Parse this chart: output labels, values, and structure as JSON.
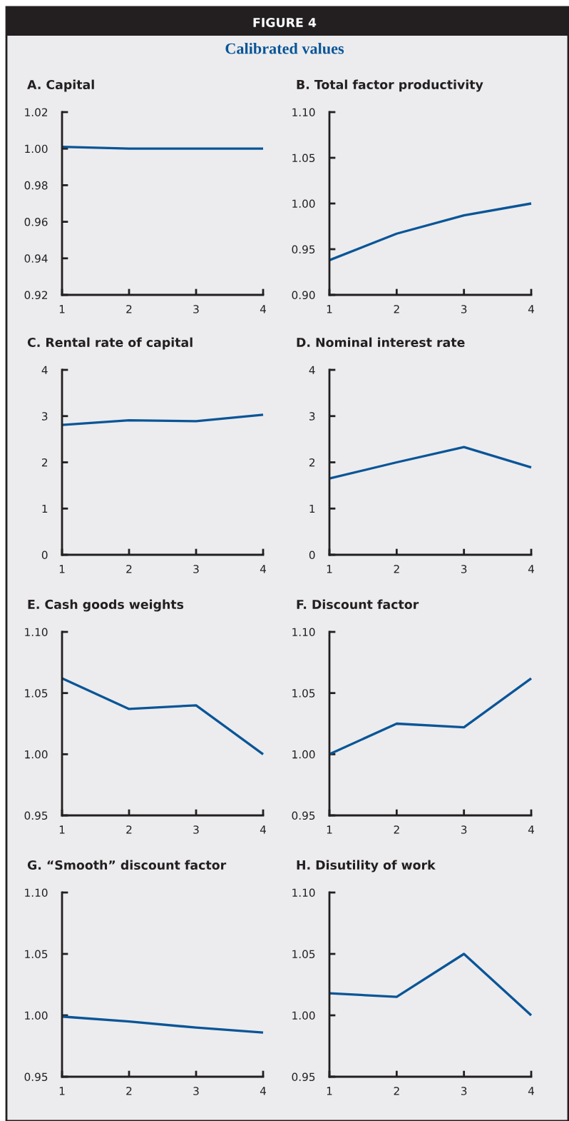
{
  "chart_data": [
    {
      "type": "other",
      "title": "FIGURE 4",
      "subtitle": "Calibrated values"
    },
    {
      "type": "line",
      "title": "A. Capital",
      "x": [
        1,
        2,
        3,
        4
      ],
      "xlim": [
        1,
        4
      ],
      "xticks": [
        1,
        2,
        3,
        4
      ],
      "ylim": [
        0.92,
        1.02
      ],
      "yticks": [
        {
          "value": 0.92,
          "label": "0.92"
        },
        {
          "value": 0.94,
          "label": "0.94"
        },
        {
          "value": 0.96,
          "label": "0.96"
        },
        {
          "value": 0.98,
          "label": "0.98"
        },
        {
          "value": 1.0,
          "label": "1.00"
        },
        {
          "value": 1.02,
          "label": "1.02"
        }
      ],
      "grid": false,
      "marker": "none",
      "line_style": "solid",
      "series": [
        {
          "color": "#0a5597",
          "values": [
            1.001,
            1.0,
            1.0,
            1.0
          ]
        }
      ]
    },
    {
      "type": "line",
      "title": "B. Total factor productivity",
      "x": [
        1,
        2,
        3,
        4
      ],
      "xlim": [
        1,
        4
      ],
      "xticks": [
        1,
        2,
        3,
        4
      ],
      "ylim": [
        0.9,
        1.1
      ],
      "yticks": [
        {
          "value": 0.9,
          "label": "0.90"
        },
        {
          "value": 0.95,
          "label": "0.95"
        },
        {
          "value": 1.0,
          "label": "1.00"
        },
        {
          "value": 1.05,
          "label": "1.05"
        },
        {
          "value": 1.1,
          "label": "1.10"
        }
      ],
      "grid": false,
      "marker": "none",
      "line_style": "solid",
      "series": [
        {
          "color": "#0a5597",
          "values": [
            0.938,
            0.967,
            0.987,
            1.0
          ]
        }
      ]
    },
    {
      "type": "line",
      "title": "C. Rental rate of capital",
      "x": [
        1,
        2,
        3,
        4
      ],
      "xlim": [
        1,
        4
      ],
      "xticks": [
        1,
        2,
        3,
        4
      ],
      "ylim": [
        0,
        4
      ],
      "yticks": [
        0,
        1,
        2,
        3,
        4
      ],
      "grid": false,
      "marker": "none",
      "line_style": "solid",
      "series": [
        {
          "color": "#0a5597",
          "values": [
            2.81,
            2.91,
            2.89,
            3.03
          ]
        }
      ]
    },
    {
      "type": "line",
      "title": "D. Nominal interest rate",
      "x": [
        1,
        2,
        3,
        4
      ],
      "xlim": [
        1,
        4
      ],
      "xticks": [
        1,
        2,
        3,
        4
      ],
      "ylim": [
        0,
        4
      ],
      "yticks": [
        0,
        1,
        2,
        3,
        4
      ],
      "grid": false,
      "marker": "none",
      "line_style": "solid",
      "series": [
        {
          "color": "#0a5597",
          "values": [
            1.65,
            2.0,
            2.33,
            1.89
          ]
        }
      ]
    },
    {
      "type": "line",
      "title": "E. Cash goods weights",
      "x": [
        1,
        2,
        3,
        4
      ],
      "xlim": [
        1,
        4
      ],
      "xticks": [
        1,
        2,
        3,
        4
      ],
      "ylim": [
        0.95,
        1.1
      ],
      "yticks": [
        {
          "value": 0.95,
          "label": "0.95"
        },
        {
          "value": 1.0,
          "label": "1.00"
        },
        {
          "value": 1.05,
          "label": "1.05"
        },
        {
          "value": 1.1,
          "label": "1.10"
        }
      ],
      "grid": false,
      "marker": "none",
      "line_style": "solid",
      "series": [
        {
          "color": "#0a5597",
          "values": [
            1.062,
            1.037,
            1.04,
            1.0
          ]
        }
      ]
    },
    {
      "type": "line",
      "title": "F. Discount factor",
      "x": [
        1,
        2,
        3,
        4
      ],
      "xlim": [
        1,
        4
      ],
      "xticks": [
        1,
        2,
        3,
        4
      ],
      "ylim": [
        0.95,
        1.1
      ],
      "yticks": [
        {
          "value": 0.95,
          "label": "0.95"
        },
        {
          "value": 1.0,
          "label": "1.00"
        },
        {
          "value": 1.05,
          "label": "1.05"
        },
        {
          "value": 1.1,
          "label": "1.10"
        }
      ],
      "grid": false,
      "marker": "none",
      "line_style": "solid",
      "series": [
        {
          "color": "#0a5597",
          "values": [
            1.0,
            1.025,
            1.022,
            1.062
          ]
        }
      ]
    },
    {
      "type": "line",
      "title": "G. “Smooth” discount factor",
      "x": [
        1,
        2,
        3,
        4
      ],
      "xlim": [
        1,
        4
      ],
      "xticks": [
        1,
        2,
        3,
        4
      ],
      "ylim": [
        0.95,
        1.1
      ],
      "yticks": [
        {
          "value": 0.95,
          "label": "0.95"
        },
        {
          "value": 1.0,
          "label": "1.00"
        },
        {
          "value": 1.05,
          "label": "1.05"
        },
        {
          "value": 1.1,
          "label": "1.10"
        }
      ],
      "grid": false,
      "marker": "none",
      "line_style": "solid",
      "series": [
        {
          "color": "#0a5597",
          "values": [
            0.999,
            0.995,
            0.99,
            0.986
          ]
        }
      ]
    },
    {
      "type": "line",
      "title": "H. Disutility of work",
      "x": [
        1,
        2,
        3,
        4
      ],
      "xlim": [
        1,
        4
      ],
      "xticks": [
        1,
        2,
        3,
        4
      ],
      "ylim": [
        0.95,
        1.1
      ],
      "yticks": [
        {
          "value": 0.95,
          "label": "0.95"
        },
        {
          "value": 1.0,
          "label": "1.00"
        },
        {
          "value": 1.05,
          "label": "1.05"
        },
        {
          "value": 1.1,
          "label": "1.10"
        }
      ],
      "grid": false,
      "marker": "none",
      "line_style": "solid",
      "series": [
        {
          "color": "#0a5597",
          "values": [
            1.018,
            1.015,
            1.05,
            1.0
          ]
        }
      ]
    }
  ]
}
